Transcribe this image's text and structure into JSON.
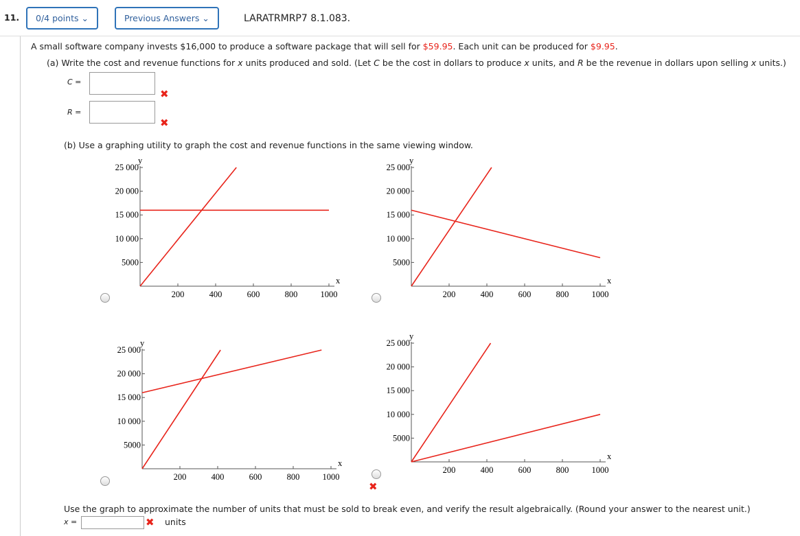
{
  "header": {
    "number": "11.",
    "points": "0/4 points",
    "previous": "Previous Answers",
    "code": "LARATRMRP7 8.1.083."
  },
  "problem": {
    "intro": [
      "A small software company invests $16,000 to produce a software package that will sell for ",
      "$59.95",
      ". Each unit can be produced for ",
      "$9.95",
      "."
    ],
    "part_a": [
      "(a) Write the cost and revenue functions for ",
      "x",
      " units produced and sold. (Let ",
      "C",
      " be the cost in dollars to produce ",
      "x",
      " units, and ",
      "R",
      " be the revenue in dollars upon selling ",
      "x",
      " units.)"
    ],
    "c_label": "C =",
    "r_label": "R =",
    "part_b": "(b) Use a graphing utility to graph the cost and revenue functions in the same viewing window.",
    "final": "Use the graph to approximate the number of units that must be sold to break even, and verify the result algebraically. (Round your answer to the nearest unit.)",
    "x_label": "x =",
    "units": "units"
  },
  "graphs": [
    {
      "xlabel": "x",
      "ylabel": "y",
      "xlim": [
        0,
        1000
      ],
      "ylim": [
        0,
        25000
      ],
      "xticks": [
        200,
        400,
        600,
        800,
        1000
      ],
      "yticks": [
        5000,
        {
          "value": 10000,
          "label": "10 000"
        },
        {
          "value": 15000,
          "label": "15 000"
        },
        {
          "value": 20000,
          "label": "20 000"
        },
        {
          "value": 25000,
          "label": "25 000"
        }
      ],
      "lines": [
        {
          "color": "#e8241b",
          "x": [
            0,
            510
          ],
          "y": [
            0,
            25000
          ]
        },
        {
          "color": "#e8241b",
          "x": [
            0,
            1000
          ],
          "y": [
            16000,
            16000
          ]
        }
      ]
    },
    {
      "xlabel": "x",
      "ylabel": "y",
      "xlim": [
        0,
        1000
      ],
      "ylim": [
        0,
        25000
      ],
      "xticks": [
        200,
        400,
        600,
        800,
        1000
      ],
      "yticks": [
        5000,
        {
          "value": 10000,
          "label": "10 000"
        },
        {
          "value": 15000,
          "label": "15 000"
        },
        {
          "value": 20000,
          "label": "20 000"
        },
        {
          "value": 25000,
          "label": "25 000"
        }
      ],
      "lines": [
        {
          "color": "#e8241b",
          "x": [
            0,
            425
          ],
          "y": [
            0,
            25000
          ]
        },
        {
          "color": "#e8241b",
          "x": [
            0,
            1000
          ],
          "y": [
            16000,
            6000
          ]
        }
      ]
    },
    {
      "xlabel": "x",
      "ylabel": "y",
      "xlim": [
        0,
        1000
      ],
      "ylim": [
        0,
        25000
      ],
      "xticks": [
        200,
        400,
        600,
        800,
        1000
      ],
      "yticks": [
        5000,
        {
          "value": 10000,
          "label": "10 000"
        },
        {
          "value": 15000,
          "label": "15 000"
        },
        {
          "value": 20000,
          "label": "20 000"
        },
        {
          "value": 25000,
          "label": "25 000"
        }
      ],
      "lines": [
        {
          "color": "#e8241b",
          "x": [
            0,
            415
          ],
          "y": [
            0,
            25000
          ]
        },
        {
          "color": "#e8241b",
          "x": [
            0,
            950
          ],
          "y": [
            16000,
            25000
          ]
        }
      ]
    },
    {
      "xlabel": "x",
      "ylabel": "y",
      "xlim": [
        0,
        1000
      ],
      "ylim": [
        0,
        25000
      ],
      "xticks": [
        200,
        400,
        600,
        800,
        1000
      ],
      "yticks": [
        5000,
        {
          "value": 10000,
          "label": "10 000"
        },
        {
          "value": 15000,
          "label": "15 000"
        },
        {
          "value": 20000,
          "label": "20 000"
        },
        {
          "value": 25000,
          "label": "25 000"
        }
      ],
      "lines": [
        {
          "color": "#e8241b",
          "x": [
            0,
            420
          ],
          "y": [
            0,
            25000
          ]
        },
        {
          "color": "#e8241b",
          "x": [
            0,
            1000
          ],
          "y": [
            0,
            10000
          ]
        }
      ]
    }
  ]
}
